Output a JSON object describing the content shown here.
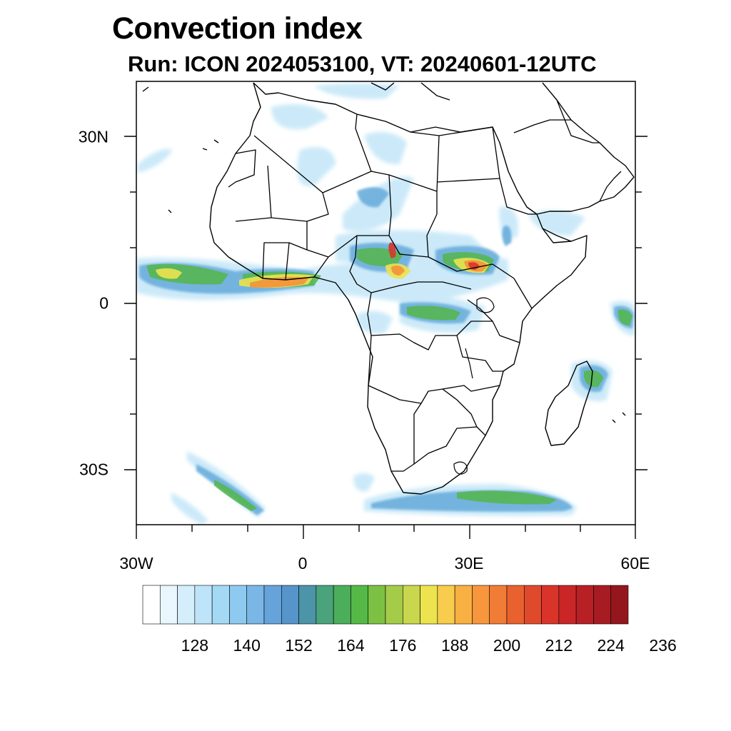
{
  "header": {
    "title": "Convection index",
    "subtitle": "Run: ICON 2024053100,  VT: 20240601-12UTC"
  },
  "map": {
    "lon_range": [
      -30,
      60
    ],
    "lat_range": [
      -40,
      40
    ],
    "lat_labels": [
      {
        "value": 30,
        "label": "30N"
      },
      {
        "value": 0,
        "label": "0"
      },
      {
        "value": -30,
        "label": "30S"
      }
    ],
    "lon_labels": [
      {
        "value": -30,
        "label": "30W"
      },
      {
        "value": 0,
        "label": "0"
      },
      {
        "value": 30,
        "label": "30E"
      },
      {
        "value": 60,
        "label": "60E"
      }
    ]
  },
  "colorbar": {
    "colors": [
      "#ffffff",
      "#eaf6fd",
      "#d4eefb",
      "#bde4f8",
      "#a3d9f5",
      "#8ecaef",
      "#7ab6e6",
      "#66a3da",
      "#5794c9",
      "#4c95a8",
      "#4aa37a",
      "#4aae5a",
      "#56b947",
      "#7cc144",
      "#a5cc49",
      "#c8d74d",
      "#ece34f",
      "#f8cc4c",
      "#f8b043",
      "#f7963c",
      "#f17c35",
      "#e8612f",
      "#e04a2c",
      "#d93429",
      "#ca2628",
      "#b72126",
      "#a61c22",
      "#94171d"
    ],
    "labels": [
      "128",
      "140",
      "152",
      "164",
      "176",
      "188",
      "200",
      "212",
      "224",
      "236"
    ]
  }
}
